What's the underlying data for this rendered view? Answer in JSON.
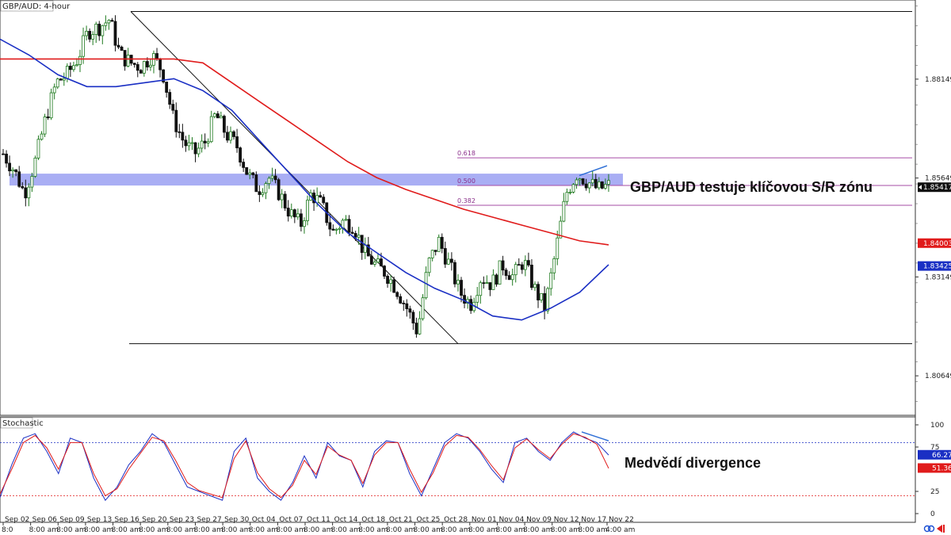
{
  "chart_data": [
    {
      "type": "candlestick",
      "title": "GBP/AUD: 4-hour",
      "ylim": [
        1.7965,
        1.9015
      ],
      "y_ticks": [
        "1.88149",
        "1.85649",
        "1.83149",
        "1.80649"
      ],
      "x_labels_top": [
        "Sep 02",
        "Sep 06",
        "Sep 09",
        "Sep 13",
        "Sep 16",
        "Sep 20",
        "Sep 23",
        "Sep 27",
        "Sep 30",
        "Oct 04",
        "Oct 07",
        "Oct 11",
        "Oct 14",
        "Oct 18",
        "Oct 21",
        "Oct 25",
        "Oct 28",
        "Nov 01",
        "Nov 04",
        "Nov 09",
        "Nov 12",
        "Nov 17",
        "Nov 22"
      ],
      "x_labels_bottom": [
        "8:0",
        "8:00 am",
        "8:00 am",
        "8:00 am",
        "8:00 am",
        "8:00 am",
        "8:00 am",
        "8:00 am",
        "8:00 am",
        "8:00 am",
        "8:00 am",
        "8:00 am",
        "8:00 am",
        "8:00 am",
        "8:00 am",
        "8:00 am",
        "8:00 am",
        "8:00 am",
        "8:00 am",
        "8:00 am",
        "8:00 am",
        "8:00 am",
        "4:00 am"
      ],
      "price_path": [
        1.8626,
        1.8586,
        1.8526,
        1.8606,
        1.8716,
        1.8806,
        1.8826,
        1.8866,
        1.8936,
        1.8946,
        1.8966,
        1.8876,
        1.8856,
        1.8846,
        1.8876,
        1.8836,
        1.8716,
        1.8656,
        1.8626,
        1.8656,
        1.8726,
        1.8676,
        1.8646,
        1.8576,
        1.8536,
        1.8566,
        1.8526,
        1.8476,
        1.8446,
        1.8526,
        1.8496,
        1.8426,
        1.8456,
        1.8446,
        1.8376,
        1.8346,
        1.8326,
        1.8286,
        1.8236,
        1.8176,
        1.8346,
        1.8406,
        1.8346,
        1.8276,
        1.8246,
        1.8316,
        1.8296,
        1.8346,
        1.8316,
        1.8356,
        1.8286,
        1.8236,
        1.8376,
        1.8526,
        1.8576,
        1.8556,
        1.8536,
        1.8546
      ],
      "current_price": "1.85417",
      "moving_averages": [
        {
          "name": "red MA",
          "color": "#e01b1b",
          "last_value": "1.84003",
          "values": [
            1.8866,
            1.8866,
            1.8866,
            1.8866,
            1.8866,
            1.8866,
            1.8866,
            1.8856,
            1.8806,
            1.8756,
            1.8706,
            1.8656,
            1.8606,
            1.8566,
            1.8536,
            1.8511,
            1.8486,
            1.8466,
            1.8446,
            1.8426,
            1.8406,
            1.8396
          ]
        },
        {
          "name": "blue MA",
          "color": "#1a2fc4",
          "last_value": "1.83425",
          "values": [
            1.8916,
            1.8876,
            1.8826,
            1.8796,
            1.8796,
            1.8806,
            1.8816,
            1.8786,
            1.8736,
            1.8656,
            1.8576,
            1.8496,
            1.8426,
            1.8376,
            1.8326,
            1.8286,
            1.8256,
            1.8216,
            1.8206,
            1.8236,
            1.8276,
            1.8346
          ]
        }
      ],
      "sr_zone": {
        "low": 1.8546,
        "high": 1.8576
      },
      "fibonacci": [
        {
          "label": "0.618",
          "value": 1.8616
        },
        {
          "label": "0.500",
          "value": 1.8546
        },
        {
          "label": "0.382",
          "value": 1.8496
        }
      ],
      "swing_high": 1.8986,
      "swing_low": 1.8146,
      "annotation": "GBP/AUD testuje klíčovou S/R zónu",
      "colors": {
        "bull": "#1f7a1f",
        "bear": "#111111",
        "zone": "#9aa0f2",
        "fib": "#a64ca6",
        "badge_dark": "#111111",
        "badge_red": "#e01b1b",
        "badge_blue": "#1a2fc4"
      }
    },
    {
      "type": "line",
      "title": "Stochastic",
      "ylim": [
        0,
        100
      ],
      "y_ticks": [
        "100",
        "75",
        "25",
        "0"
      ],
      "levels": [
        80,
        20
      ],
      "series": [
        {
          "name": "%K",
          "color": "#1a2fc4",
          "last_value": "66.27",
          "values": [
            18,
            55,
            85,
            90,
            70,
            45,
            85,
            80,
            40,
            15,
            30,
            55,
            70,
            90,
            80,
            55,
            30,
            25,
            20,
            15,
            70,
            85,
            40,
            25,
            15,
            35,
            65,
            40,
            80,
            65,
            60,
            30,
            70,
            82,
            80,
            45,
            20,
            50,
            80,
            90,
            85,
            70,
            50,
            35,
            80,
            85,
            70,
            60,
            80,
            92,
            85,
            80,
            66
          ]
        },
        {
          "name": "%D",
          "color": "#e01b1b",
          "last_value": "51.36",
          "values": [
            22,
            50,
            80,
            88,
            74,
            50,
            80,
            80,
            45,
            20,
            28,
            50,
            68,
            86,
            82,
            60,
            35,
            26,
            22,
            18,
            62,
            82,
            46,
            28,
            18,
            32,
            60,
            44,
            76,
            66,
            60,
            34,
            66,
            80,
            80,
            50,
            24,
            46,
            76,
            88,
            86,
            72,
            54,
            38,
            74,
            84,
            72,
            62,
            78,
            90,
            86,
            78,
            51
          ]
        }
      ],
      "annotation": "Medvědí divergence"
    }
  ]
}
